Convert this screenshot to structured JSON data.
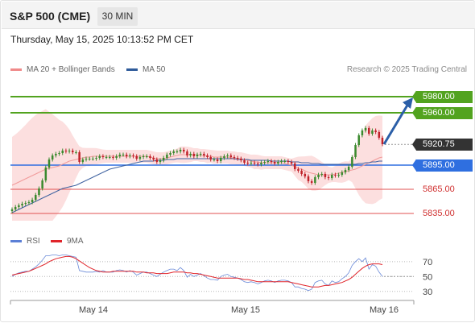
{
  "header": {
    "symbol": "S&P 500 (CME)",
    "interval": "30 MIN",
    "datetime": "Thursday, May 15, 2025 10:13:52 PM CET"
  },
  "legend": {
    "items": [
      {
        "label": "MA 20 + Bollinger Bands",
        "color": "#f08a8a"
      },
      {
        "label": "MA 50",
        "color": "#2f5b9a"
      }
    ],
    "credit": "Research © 2025 Trading Central"
  },
  "rsi_legend": {
    "items": [
      {
        "label": "RSI",
        "color": "#5b7fd6"
      },
      {
        "label": "9MA",
        "color": "#e0242a"
      }
    ]
  },
  "colors": {
    "up": "#3a8a2e",
    "down": "#c0222a",
    "resistance": "#52a31f",
    "support_line": "#2f6fe0",
    "support_levels": "#e05050",
    "current": "#333333",
    "bb_fill": "#fbd9d9",
    "arrow": "#2b5fa8"
  },
  "chart_data": [
    {
      "type": "candlestick",
      "title": "",
      "x_tick_labels": [
        "May 14",
        "May 15",
        "May 16"
      ],
      "y_range": [
        5824,
        6004
      ],
      "price_levels": [
        {
          "label": "5980.00",
          "value": 5980,
          "kind": "resistance"
        },
        {
          "label": "5960.00",
          "value": 5960,
          "kind": "resistance"
        },
        {
          "label": "5920.75",
          "value": 5920.75,
          "kind": "current"
        },
        {
          "label": "5895.00",
          "value": 5895,
          "kind": "pivot"
        },
        {
          "label": "5865.00",
          "value": 5865,
          "kind": "support"
        },
        {
          "label": "5835.00",
          "value": 5835,
          "kind": "support"
        }
      ],
      "target_arrow": {
        "from": 5921,
        "to": 5979
      },
      "close": [
        5840.0,
        5843.0,
        5845.0,
        5847.0,
        5848.0,
        5849.0,
        5852.0,
        5858.0,
        5866.0,
        5876.0,
        5892.0,
        5902.0,
        5907.0,
        5909.0,
        5910.0,
        5913.0,
        5912.0,
        5913.0,
        5911.0,
        5911.0,
        5899.0,
        5902.0,
        5903.0,
        5903.0,
        5903.0,
        5904.0,
        5906.0,
        5905.0,
        5905.0,
        5905.0,
        5904.0,
        5906.0,
        5908.0,
        5908.0,
        5906.0,
        5907.0,
        5906.0,
        5903.0,
        5905.0,
        5906.0,
        5906.0,
        5904.0,
        5902.0,
        5899.0,
        5901.0,
        5904.0,
        5908.0,
        5910.0,
        5912.0,
        5912.0,
        5914.0,
        5912.0,
        5907.0,
        5909.0,
        5906.0,
        5908.0,
        5909.0,
        5907.0,
        5905.0,
        5902.0,
        5902.0,
        5900.0,
        5904.0,
        5906.0,
        5907.0,
        5905.0,
        5904.0,
        5903.0,
        5901.0,
        5898.0,
        5897.0,
        5898.0,
        5897.0,
        5896.0,
        5898.0,
        5899.0,
        5900.0,
        5899.0,
        5897.0,
        5899.0,
        5900.0,
        5900.0,
        5899.0,
        5897.0,
        5890.0,
        5888.0,
        5884.0,
        5881.0,
        5875.0,
        5873.0,
        5880.0,
        5883.0,
        5884.0,
        5880.0,
        5879.0,
        5883.0,
        5882.0,
        5883.0,
        5886.0,
        5889.0,
        5893.0,
        5905.0,
        5920.0,
        5932.0,
        5938.0,
        5941.0,
        5934.0,
        5938.0,
        5936.0,
        5929.0,
        5921.0
      ],
      "ma20": [
        5870.0,
        5872.0,
        5874.0,
        5876.0,
        5878.0,
        5880.0,
        5882.0,
        5884.0,
        5886.0,
        5888.0,
        5890.0,
        5891.0,
        5892.0,
        5893.0,
        5894.0,
        5896.0,
        5898.0,
        5900.0,
        5901.0,
        5902.0,
        5903.0,
        5904.0,
        5905.0,
        5905.0,
        5906.0,
        5906.0,
        5906.0,
        5906.0,
        5906.0,
        5906.0,
        5906.0,
        5906.0,
        5906.0,
        5906.0,
        5906.0,
        5906.0,
        5906.0,
        5906.0,
        5906.0,
        5906.0,
        5906.0,
        5905.0,
        5904.0,
        5903.0,
        5903.0,
        5903.0,
        5904.0,
        5905.0,
        5906.0,
        5907.0,
        5908.0,
        5908.0,
        5908.0,
        5908.0,
        5908.0,
        5908.0,
        5907.0,
        5907.0,
        5906.0,
        5906.0,
        5905.0,
        5905.0,
        5905.0,
        5905.0,
        5905.0,
        5904.0,
        5904.0,
        5903.0,
        5903.0,
        5902.0,
        5901.0,
        5900.0,
        5899.0,
        5899.0,
        5898.0,
        5898.0,
        5898.0,
        5898.0,
        5898.0,
        5898.0,
        5898.0,
        5897.0,
        5896.0,
        5895.0,
        5893.0,
        5891.0,
        5890.0,
        5888.0,
        5886.0,
        5885.0,
        5884.0,
        5883.0,
        5883.0,
        5883.0,
        5883.0,
        5883.0,
        5884.0,
        5885.0,
        5886.0,
        5887.0,
        5888.0,
        5889.0,
        5890.0,
        5892.0,
        5894.0,
        5896.0,
        5898.0,
        5900.0,
        5902.0,
        5904.0,
        5905.0
      ],
      "ma50": [
        5836.0,
        5838.0,
        5840.0,
        5842.0,
        5844.0,
        5846.0,
        5848.0,
        5850.0,
        5852.0,
        5854.0,
        5856.0,
        5858.0,
        5860.0,
        5862.0,
        5864.0,
        5866.0,
        5867.0,
        5868.0,
        5869.0,
        5870.0,
        5872.0,
        5874.0,
        5876.0,
        5878.0,
        5880.0,
        5882.0,
        5884.0,
        5886.0,
        5888.0,
        5890.0,
        5891.0,
        5892.0,
        5893.0,
        5894.0,
        5895.0,
        5896.0,
        5897.0,
        5898.0,
        5899.0,
        5900.0,
        5900.0,
        5900.0,
        5900.0,
        5901.0,
        5901.0,
        5901.0,
        5902.0,
        5902.0,
        5902.0,
        5903.0,
        5903.0,
        5903.0,
        5903.0,
        5903.0,
        5903.0,
        5903.0,
        5903.0,
        5903.0,
        5903.0,
        5903.0,
        5903.0,
        5903.0,
        5903.0,
        5903.0,
        5903.0,
        5903.0,
        5903.0,
        5902.0,
        5902.0,
        5902.0,
        5902.0,
        5901.0,
        5901.0,
        5901.0,
        5901.0,
        5901.0,
        5901.0,
        5900.0,
        5900.0,
        5900.0,
        5900.0,
        5900.0,
        5900.0,
        5899.0,
        5899.0,
        5899.0,
        5898.0,
        5898.0,
        5898.0,
        5897.0,
        5897.0,
        5897.0,
        5896.0,
        5896.0,
        5896.0,
        5896.0,
        5896.0,
        5896.0,
        5896.0,
        5896.0,
        5896.0,
        5896.0,
        5896.0,
        5897.0,
        5897.0,
        5898.0,
        5898.0,
        5899.0,
        5899.0,
        5900.0,
        5900.0
      ]
    },
    {
      "type": "line",
      "title": "",
      "y_tick_labels": [
        "70",
        "50",
        "30"
      ],
      "y_ticks": [
        70,
        50,
        30
      ],
      "y_range": [
        20,
        85
      ],
      "series": [
        {
          "name": "RSI",
          "values": [
            50,
            53,
            55,
            56,
            57,
            57,
            60,
            63,
            67,
            72,
            78,
            78,
            79,
            79,
            78,
            79,
            79,
            78,
            77,
            76,
            58,
            57,
            56,
            56,
            56,
            57,
            56,
            58,
            56,
            56,
            56,
            58,
            59,
            58,
            56,
            58,
            56,
            52,
            54,
            56,
            56,
            54,
            52,
            50,
            53,
            56,
            58,
            60,
            60,
            58,
            62,
            58,
            49,
            53,
            50,
            52,
            54,
            51,
            48,
            46,
            46,
            45,
            50,
            52,
            53,
            50,
            49,
            48,
            46,
            43,
            42,
            43,
            42,
            40,
            42,
            44,
            45,
            44,
            42,
            44,
            45,
            45,
            44,
            42,
            36,
            36,
            34,
            33,
            31,
            33,
            42,
            44,
            45,
            40,
            38,
            44,
            42,
            43,
            47,
            50,
            55,
            65,
            70,
            74,
            70,
            75,
            60,
            66,
            64,
            56,
            50
          ]
        },
        {
          "name": "9MA",
          "values": [
            52,
            53,
            54,
            55,
            56,
            57,
            59,
            61,
            63,
            65,
            67,
            70,
            72,
            74,
            75,
            76,
            77,
            77,
            76,
            74,
            71,
            68,
            65,
            62,
            60,
            58,
            57,
            56,
            56,
            56,
            57,
            57,
            57,
            57,
            57,
            57,
            57,
            56,
            56,
            56,
            55,
            55,
            55,
            54,
            54,
            54,
            54,
            55,
            56,
            56,
            56,
            56,
            55,
            55,
            54,
            54,
            53,
            52,
            51,
            50,
            49,
            48,
            48,
            48,
            48,
            48,
            48,
            48,
            47,
            46,
            46,
            45,
            44,
            43,
            43,
            43,
            43,
            43,
            43,
            43,
            43,
            43,
            43,
            42,
            41,
            40,
            39,
            38,
            37,
            36,
            36,
            36,
            37,
            38,
            38,
            39,
            40,
            41,
            42,
            44,
            46,
            49,
            53,
            57,
            61,
            64,
            66,
            67,
            67,
            67,
            66
          ]
        }
      ]
    }
  ]
}
